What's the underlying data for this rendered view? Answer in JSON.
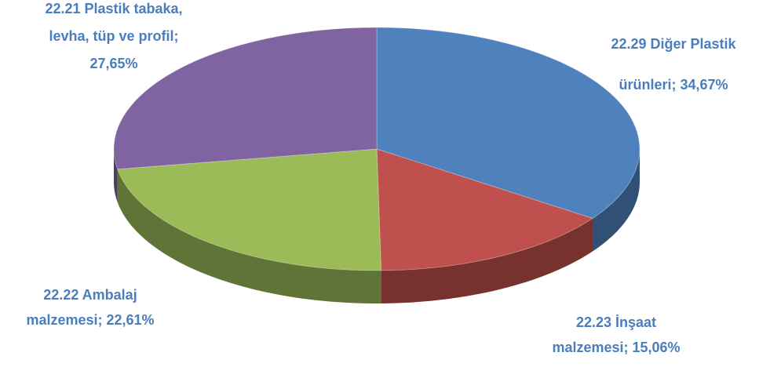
{
  "chart_data": {
    "type": "pie",
    "categories": [
      "22.29 Diğer Plastik ürünleri",
      "22.23 İnşaat malzemesi",
      "22.22 Ambalaj malzemesi",
      "22.21 Plastik tabaka, levha, tüp ve profil"
    ],
    "values": [
      34.67,
      15.06,
      22.61,
      27.65
    ],
    "value_labels": [
      "34,67%",
      "15,06%",
      "22,61%",
      "27,65%"
    ],
    "label_separator": "; ",
    "colors": [
      "#4f81bd",
      "#c0504d",
      "#9bbb59",
      "#8064a2"
    ]
  }
}
